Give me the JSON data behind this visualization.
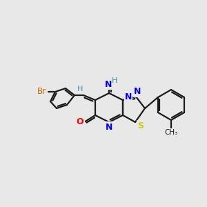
{
  "bg_color": "#e8e8e8",
  "fig_width": 3.0,
  "fig_height": 3.0,
  "dpi": 100,
  "bond_color": "#1a1a1a",
  "bond_lw": 1.5,
  "colors": {
    "Br": "#cc6600",
    "N": "#0000ff",
    "O": "#ff0000",
    "S": "#cccc00",
    "C": "#1a1a1a",
    "H": "#339999"
  }
}
